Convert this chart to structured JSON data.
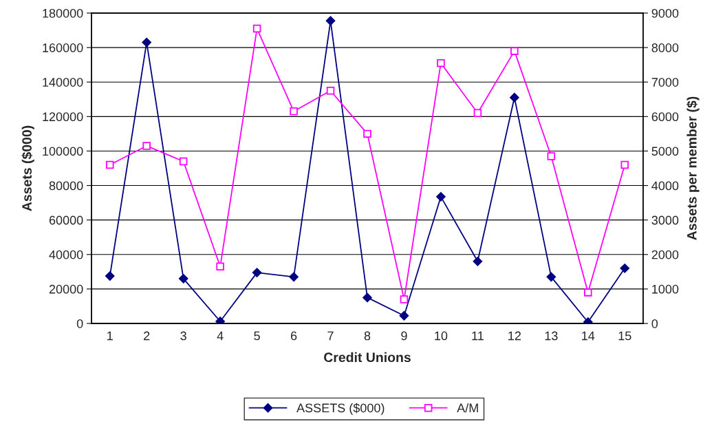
{
  "chart_data": {
    "type": "line",
    "xlabel": "Credit Unions",
    "ylabel": "Assets ($000)",
    "y2label": "Assets per member ($)",
    "categories": [
      "1",
      "2",
      "3",
      "4",
      "5",
      "6",
      "7",
      "8",
      "9",
      "10",
      "11",
      "12",
      "13",
      "14",
      "15"
    ],
    "series": [
      {
        "name": "ASSETS ($000)",
        "color": "#000080",
        "marker": "diamond",
        "values": [
          27500,
          163000,
          26000,
          1200,
          29500,
          27000,
          175500,
          15000,
          4500,
          73500,
          36000,
          131000,
          27000,
          800,
          32000
        ]
      },
      {
        "name": "A/M",
        "color": "#ff00ff",
        "marker": "square",
        "axis": "y2",
        "values": [
          4600,
          5150,
          4700,
          1650,
          8550,
          6150,
          6750,
          5500,
          700,
          7550,
          6100,
          7900,
          4850,
          900,
          4600
        ]
      }
    ],
    "ylim": [
      0,
      180000
    ],
    "yticks": [
      0,
      20000,
      40000,
      60000,
      80000,
      100000,
      120000,
      140000,
      160000,
      180000
    ],
    "y2lim": [
      0,
      9000
    ],
    "y2ticks": [
      0,
      1000,
      2000,
      3000,
      4000,
      5000,
      6000,
      7000,
      8000,
      9000
    ],
    "grid": "y",
    "legend": "bottom",
    "line_style": "solid"
  }
}
